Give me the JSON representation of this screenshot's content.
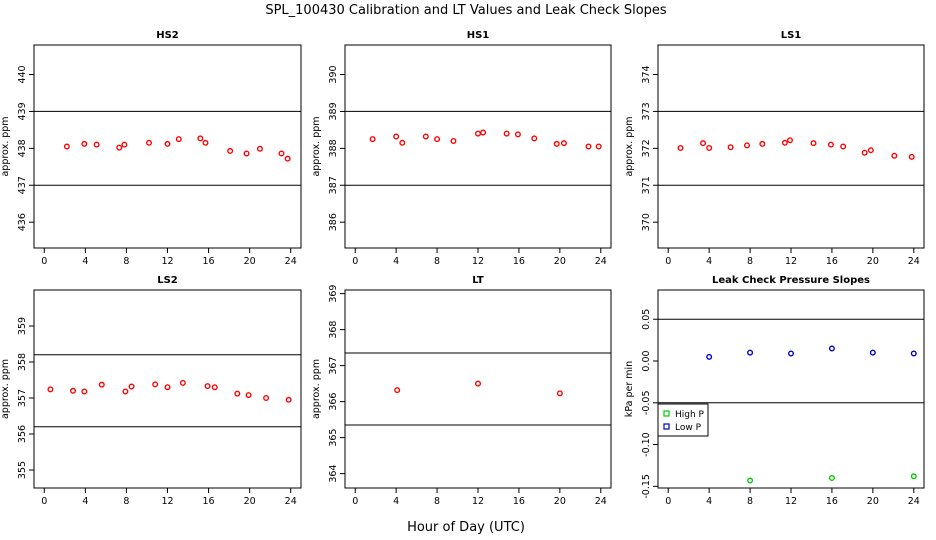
{
  "figure": {
    "title": "SPL_100430  Calibration and LT Values and Leak Check Slopes",
    "xlabel": "Hour of Day (UTC)"
  },
  "chart_data": [
    {
      "type": "scatter",
      "title": "HS2",
      "ylabel": "approx. ppm",
      "xlim": [
        -1,
        25
      ],
      "ylim": [
        435.3,
        440.8
      ],
      "xticks": [
        "0",
        "4",
        "8",
        "12",
        "16",
        "20",
        "24"
      ],
      "yticks": [
        "436",
        "437",
        "438",
        "439",
        "440"
      ],
      "hlines": [
        437.0,
        439.0
      ],
      "series": [
        {
          "color": "#ff0000",
          "x": [
            2.2,
            3.9,
            5.1,
            7.3,
            7.8,
            10.2,
            12.0,
            13.1,
            15.2,
            15.7,
            18.1,
            19.7,
            21.0,
            23.1,
            23.7
          ],
          "y": [
            438.05,
            438.12,
            438.1,
            438.02,
            438.1,
            438.15,
            438.12,
            438.25,
            438.27,
            438.15,
            437.93,
            437.86,
            437.99,
            437.86,
            437.72
          ]
        }
      ]
    },
    {
      "type": "scatter",
      "title": "HS1",
      "ylabel": "approx. ppm",
      "xlim": [
        -1,
        25
      ],
      "ylim": [
        385.3,
        390.8
      ],
      "xticks": [
        "0",
        "4",
        "8",
        "12",
        "16",
        "20",
        "24"
      ],
      "yticks": [
        "386",
        "387",
        "388",
        "389",
        "390"
      ],
      "hlines": [
        387.0,
        389.0
      ],
      "series": [
        {
          "color": "#ff0000",
          "x": [
            1.7,
            4.0,
            4.6,
            6.9,
            8.0,
            9.6,
            12.0,
            12.5,
            14.8,
            15.9,
            17.5,
            19.7,
            20.4,
            22.8,
            23.8
          ],
          "y": [
            388.25,
            388.32,
            388.15,
            388.32,
            388.25,
            388.2,
            388.4,
            388.43,
            388.4,
            388.38,
            388.27,
            388.12,
            388.14,
            388.05,
            388.05
          ]
        }
      ]
    },
    {
      "type": "scatter",
      "title": "LS1",
      "ylabel": "approx. ppm",
      "xlim": [
        -1,
        25
      ],
      "ylim": [
        369.3,
        374.8
      ],
      "xticks": [
        "0",
        "4",
        "8",
        "12",
        "16",
        "20",
        "24"
      ],
      "yticks": [
        "370",
        "371",
        "372",
        "373",
        "374"
      ],
      "hlines": [
        371.0,
        373.0
      ],
      "series": [
        {
          "color": "#ff0000",
          "x": [
            1.2,
            3.4,
            4.0,
            6.1,
            7.7,
            9.2,
            11.4,
            11.9,
            14.2,
            15.9,
            17.1,
            19.2,
            19.8,
            22.1,
            23.8
          ],
          "y": [
            372.01,
            372.14,
            372.01,
            372.03,
            372.08,
            372.12,
            372.15,
            372.22,
            372.14,
            372.1,
            372.05,
            371.88,
            371.95,
            371.8,
            371.77
          ]
        }
      ]
    },
    {
      "type": "scatter",
      "title": "LS2",
      "ylabel": "approx. ppm",
      "xlim": [
        -1,
        25
      ],
      "ylim": [
        354.5,
        360.0
      ],
      "xticks": [
        "0",
        "4",
        "8",
        "12",
        "16",
        "20",
        "24"
      ],
      "yticks": [
        "355",
        "356",
        "357",
        "358",
        "359"
      ],
      "hlines": [
        356.2,
        358.2
      ],
      "series": [
        {
          "color": "#ff0000",
          "x": [
            0.6,
            2.8,
            3.9,
            5.6,
            7.9,
            8.5,
            10.8,
            12.0,
            13.5,
            15.9,
            16.6,
            18.8,
            19.9,
            21.6,
            23.8
          ],
          "y": [
            357.24,
            357.2,
            357.18,
            357.37,
            357.18,
            357.32,
            357.38,
            357.3,
            357.42,
            357.33,
            357.3,
            357.12,
            357.08,
            357.0,
            356.95
          ]
        }
      ]
    },
    {
      "type": "scatter",
      "title": "LT",
      "ylabel": "approx. ppm",
      "xlim": [
        -1,
        25
      ],
      "ylim": [
        363.6,
        369.1
      ],
      "xticks": [
        "0",
        "4",
        "8",
        "12",
        "16",
        "20",
        "24"
      ],
      "yticks": [
        "364",
        "365",
        "366",
        "367",
        "368",
        "369"
      ],
      "hlines": [
        365.35,
        367.35
      ],
      "series": [
        {
          "color": "#ff0000",
          "x": [
            4.1,
            12.0,
            20.0
          ],
          "y": [
            366.32,
            366.5,
            366.23
          ]
        }
      ]
    },
    {
      "type": "scatter",
      "title": "Leak Check Pressure Slopes",
      "ylabel": "kPa per min",
      "xlim": [
        -1,
        25
      ],
      "ylim": [
        -0.152,
        0.085
      ],
      "xticks": [
        "0",
        "4",
        "8",
        "12",
        "16",
        "20",
        "24"
      ],
      "yticks": [
        "0.05",
        "0.00",
        "-0.05",
        "-0.10",
        "-0.15"
      ],
      "ytick_values": [
        0.05,
        0.0,
        -0.05,
        -0.1,
        -0.15
      ],
      "hlines": [
        0.05,
        -0.05
      ],
      "legend": {
        "placement": "left-middle",
        "entries": [
          "High P",
          "Low P"
        ]
      },
      "series": [
        {
          "name": "High P",
          "color": "#00cc00",
          "x": [
            8.0,
            16.0,
            24.0
          ],
          "y": [
            -0.143,
            -0.14,
            -0.138
          ]
        },
        {
          "name": "Low P",
          "color": "#0000cc",
          "x": [
            4.0,
            8.0,
            12.0,
            16.0,
            20.0,
            24.0
          ],
          "y": [
            0.005,
            0.01,
            0.009,
            0.015,
            0.01,
            0.009
          ]
        }
      ]
    }
  ]
}
